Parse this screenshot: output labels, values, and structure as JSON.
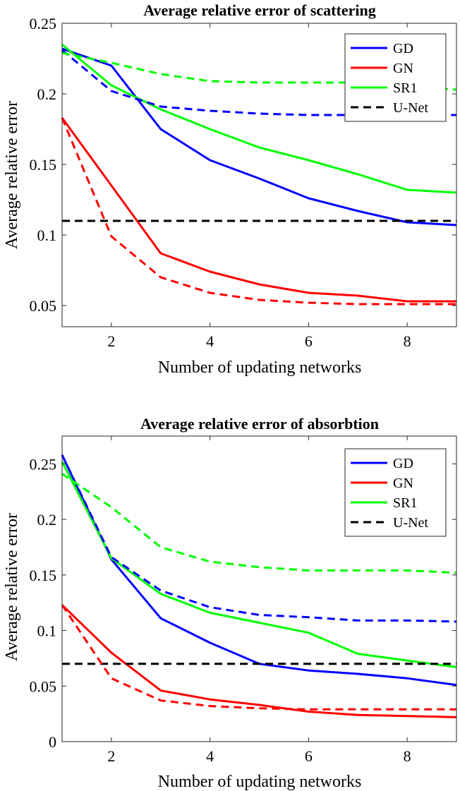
{
  "chart_data": [
    {
      "type": "line",
      "title": "Average relative error of scattering",
      "xlabel": "Number of updating networks",
      "ylabel": "Average relative error",
      "xlim": [
        1,
        9
      ],
      "ylim": [
        0.035,
        0.25
      ],
      "xticks": [
        2,
        4,
        6,
        8
      ],
      "yticks": [
        0.05,
        0.1,
        0.15,
        0.2,
        0.25
      ],
      "ytick_labels": [
        "0.05",
        "0.1",
        "0.15",
        "0.2",
        "0.25"
      ],
      "grid": false,
      "legend_position": "top-right",
      "legend": [
        {
          "name": "GD",
          "color": "#0000ff",
          "dash": "solid"
        },
        {
          "name": "GN",
          "color": "#ff0000",
          "dash": "solid"
        },
        {
          "name": "SR1",
          "color": "#00ff00",
          "dash": "solid"
        },
        {
          "name": "U-Net",
          "color": "#000000",
          "dash": "dashed"
        }
      ],
      "series": [
        {
          "legend": "GD",
          "color": "#0000ff",
          "dash": "solid",
          "x": [
            1,
            2,
            3,
            4,
            5,
            6,
            7,
            8,
            9
          ],
          "y": [
            0.232,
            0.22,
            0.175,
            0.153,
            0.14,
            0.126,
            0.117,
            0.109,
            0.107
          ]
        },
        {
          "legend": "GN",
          "color": "#ff0000",
          "dash": "solid",
          "x": [
            1,
            2,
            3,
            4,
            5,
            6,
            7,
            8,
            9
          ],
          "y": [
            0.183,
            0.135,
            0.087,
            0.074,
            0.065,
            0.059,
            0.057,
            0.053,
            0.053
          ]
        },
        {
          "legend": "SR1",
          "color": "#00ff00",
          "dash": "solid",
          "x": [
            1,
            2,
            3,
            4,
            5,
            6,
            7,
            8,
            9
          ],
          "y": [
            0.235,
            0.206,
            0.189,
            0.175,
            0.162,
            0.153,
            0.143,
            0.132,
            0.13
          ]
        },
        {
          "legend": "U-Net",
          "color": "#000000",
          "dash": "dashed",
          "x": [
            1,
            9
          ],
          "y": [
            0.11,
            0.11
          ]
        },
        {
          "color": "#0000ff",
          "dash": "dashed",
          "x": [
            1,
            2,
            3,
            4,
            5,
            6,
            7,
            8,
            9
          ],
          "y": [
            0.231,
            0.202,
            0.191,
            0.188,
            0.186,
            0.185,
            0.185,
            0.185,
            0.185
          ]
        },
        {
          "color": "#ff0000",
          "dash": "dashed",
          "x": [
            1,
            2,
            3,
            4,
            5,
            6,
            7,
            8,
            9
          ],
          "y": [
            0.183,
            0.099,
            0.07,
            0.059,
            0.054,
            0.052,
            0.051,
            0.051,
            0.051
          ]
        },
        {
          "color": "#00ff00",
          "dash": "dashed",
          "x": [
            1,
            2,
            3,
            4,
            5,
            6,
            7,
            8,
            9
          ],
          "y": [
            0.229,
            0.222,
            0.214,
            0.209,
            0.208,
            0.208,
            0.208,
            0.205,
            0.203
          ]
        }
      ]
    },
    {
      "type": "line",
      "title": "Average relative error of absorbtion",
      "xlabel": "Number of updating networks",
      "ylabel": "Average relative error",
      "xlim": [
        1,
        9
      ],
      "ylim": [
        0,
        0.275
      ],
      "xticks": [
        2,
        4,
        6,
        8
      ],
      "yticks": [
        0,
        0.05,
        0.1,
        0.15,
        0.2,
        0.25
      ],
      "ytick_labels": [
        "0",
        "0.05",
        "0.1",
        "0.15",
        "0.2",
        "0.25"
      ],
      "grid": false,
      "legend_position": "top-right",
      "legend": [
        {
          "name": "GD",
          "color": "#0000ff",
          "dash": "solid"
        },
        {
          "name": "GN",
          "color": "#ff0000",
          "dash": "solid"
        },
        {
          "name": "SR1",
          "color": "#00ff00",
          "dash": "solid"
        },
        {
          "name": "U-Net",
          "color": "#000000",
          "dash": "dashed"
        }
      ],
      "series": [
        {
          "legend": "GD",
          "color": "#0000ff",
          "dash": "solid",
          "x": [
            1,
            2,
            3,
            4,
            5,
            6,
            7,
            8,
            9
          ],
          "y": [
            0.258,
            0.164,
            0.111,
            0.089,
            0.07,
            0.064,
            0.061,
            0.057,
            0.051
          ]
        },
        {
          "legend": "GN",
          "color": "#ff0000",
          "dash": "solid",
          "x": [
            1,
            2,
            3,
            4,
            5,
            6,
            7,
            8,
            9
          ],
          "y": [
            0.123,
            0.08,
            0.046,
            0.038,
            0.033,
            0.027,
            0.024,
            0.023,
            0.022
          ]
        },
        {
          "legend": "SR1",
          "color": "#00ff00",
          "dash": "solid",
          "x": [
            1,
            2,
            3,
            4,
            5,
            6,
            7,
            8,
            9
          ],
          "y": [
            0.252,
            0.165,
            0.133,
            0.116,
            0.107,
            0.098,
            0.079,
            0.073,
            0.067
          ]
        },
        {
          "legend": "U-Net",
          "color": "#000000",
          "dash": "dashed",
          "x": [
            1,
            9
          ],
          "y": [
            0.07,
            0.07
          ]
        },
        {
          "color": "#0000ff",
          "dash": "dashed",
          "x": [
            1,
            2,
            3,
            4,
            5,
            6,
            7,
            8,
            9
          ],
          "y": [
            0.258,
            0.166,
            0.136,
            0.121,
            0.114,
            0.112,
            0.109,
            0.109,
            0.108
          ]
        },
        {
          "color": "#ff0000",
          "dash": "dashed",
          "x": [
            1,
            2,
            3,
            4,
            5,
            6,
            7,
            8,
            9
          ],
          "y": [
            0.123,
            0.057,
            0.037,
            0.032,
            0.03,
            0.029,
            0.029,
            0.029,
            0.029
          ]
        },
        {
          "color": "#00ff00",
          "dash": "dashed",
          "x": [
            1,
            2,
            3,
            4,
            5,
            6,
            7,
            8,
            9
          ],
          "y": [
            0.241,
            0.211,
            0.175,
            0.162,
            0.157,
            0.154,
            0.154,
            0.154,
            0.152
          ]
        }
      ]
    }
  ]
}
